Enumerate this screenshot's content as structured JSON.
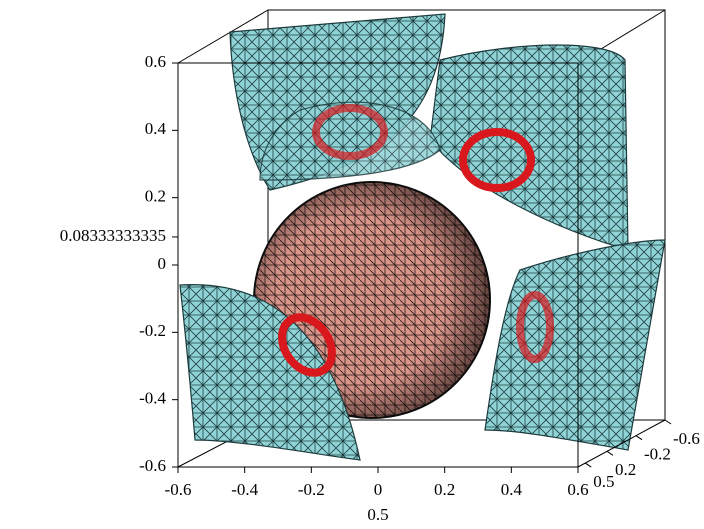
{
  "chart_data": {
    "type": "surface3d",
    "zticks": [
      0.6,
      0.4,
      0.2,
      0.08333333335,
      0,
      -0.2,
      -0.4,
      -0.6
    ],
    "zlim": [
      -0.6,
      0.6
    ],
    "xticks": [
      -0.6,
      -0.4,
      -0.2,
      0,
      0.2,
      0.4,
      0.6
    ],
    "xlim": [
      -0.6,
      0.6
    ],
    "yticks": [
      -0.6,
      -0.2,
      0.2,
      0.5
    ],
    "ylim": [
      0.6,
      -0.6
    ],
    "annotations": [
      "0.5"
    ]
  }
}
